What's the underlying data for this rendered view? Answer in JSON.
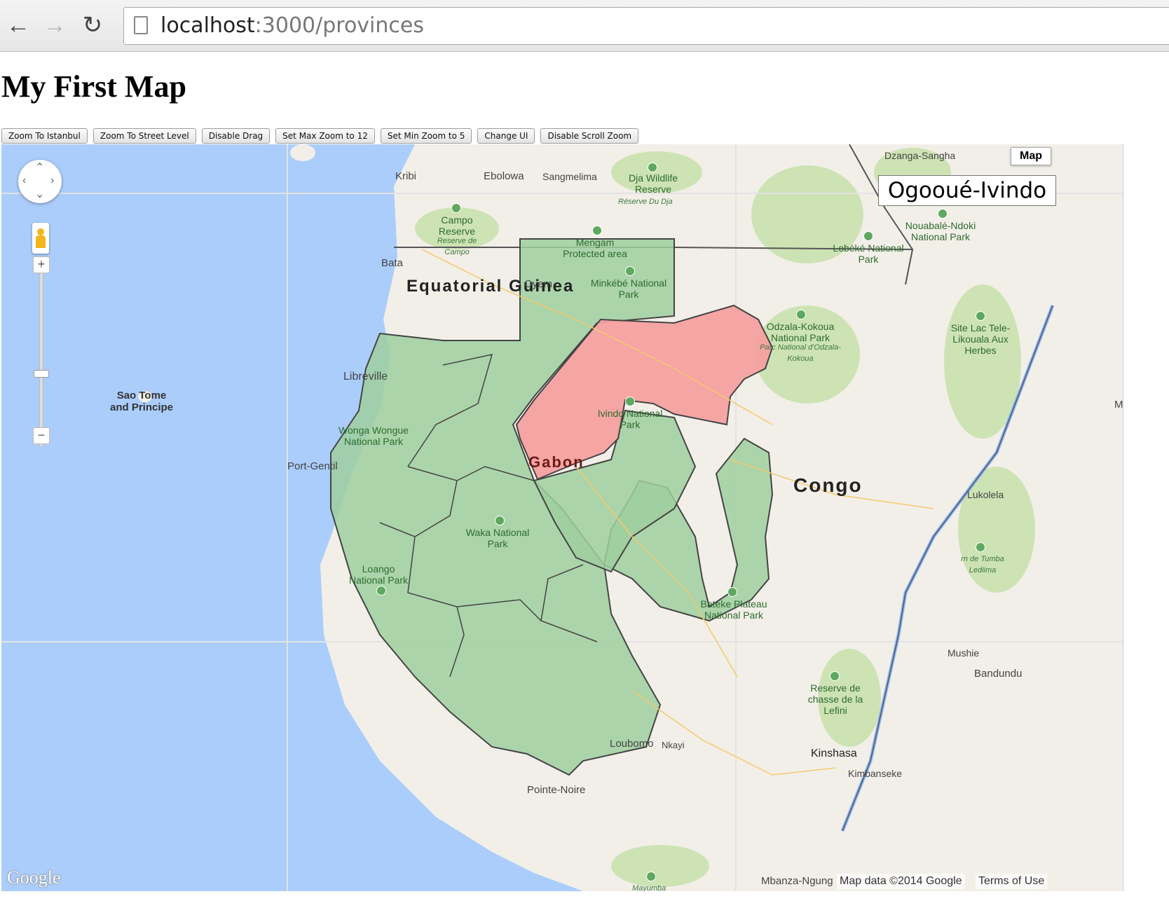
{
  "browser": {
    "url_host": "localhost",
    "url_rest": ":3000/provinces",
    "back_icon": "back-arrow-icon",
    "forward_icon": "forward-arrow-icon",
    "reload_icon": "reload-icon"
  },
  "page": {
    "title": "My First Map"
  },
  "toolbar": {
    "buttons": [
      "Zoom To Istanbul",
      "Zoom To Street Level",
      "Disable Drag",
      "Set Max Zoom to 12",
      "Set Min Zoom to 5",
      "Change UI",
      "Disable Scroll Zoom"
    ]
  },
  "map": {
    "map_type_label": "Map",
    "hover_info": "Ogooué-Ivindo",
    "selected_province_color": "#f4a0a0",
    "province_color": "#9fcf9f",
    "attribution": "Map data ©2014 Google",
    "terms": "Terms of Use",
    "logo": "Google",
    "zoom_in": "+",
    "zoom_out": "−",
    "countries": {
      "eq_guinea": "Equatorial Guinea",
      "gabon": "Gabon",
      "congo": "Congo",
      "sao_tome": "Sao Tome and Principe"
    },
    "cities": {
      "kribi": "Kribi",
      "ebolowa": "Ebolowa",
      "sangmelima": "Sangmelima",
      "bata": "Bata",
      "oyem": "Oyem",
      "libreville": "Libreville",
      "port_gentil": "Port-Gentil",
      "loubomo": "Loubomo",
      "nkayi": "Nkayi",
      "pointe_noire": "Pointe-Noire",
      "kinshasa": "Kinshasa",
      "kimbanseke": "Kimbanseke",
      "mbanza": "Mbanza-Ngung",
      "lukolela": "Lukolela",
      "mushie": "Mushie",
      "bandundu": "Bandundu",
      "dzanga": "Dzanga-Sangha",
      "m_edge": "M"
    },
    "parks": {
      "dja": "Dja Wildlife Reserve",
      "dja_sub": "Réserve Du Dja",
      "campo": "Campo Reserve",
      "campo_sub": "Reserve de Campo",
      "mengam": "Mengam Protected area",
      "minkebe": "Minkébé National Park",
      "nouabale": "Nouabalé-Ndoki National Park",
      "lobeke": "Lobéké National Park",
      "odzala": "Odzala-Kokoua National Park",
      "odzala_sub": "Parc National d'Odzala-Kokoua",
      "lac_tele": "Site Lac Tele-Likouala Aux Herbes",
      "ivindo": "Ivindo National Park",
      "wonga": "Wonga Wongue National Park",
      "waka": "Waka National Park",
      "loango": "Loango National Park",
      "bateke": "Bateke Plateau National Park",
      "lefini": "Reserve de chasse de la Lefini",
      "tumba": "rn de Tumba Lediima",
      "mayumba": "Mayumba"
    }
  }
}
